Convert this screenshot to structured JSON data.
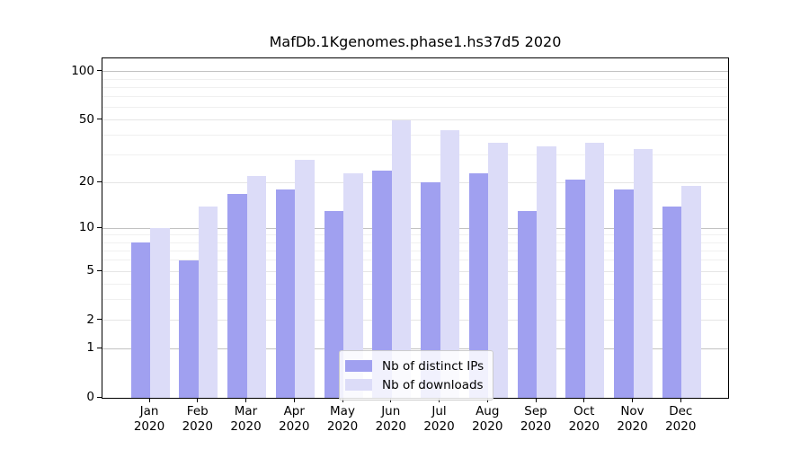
{
  "chart_data": {
    "type": "bar",
    "title": "MafDb.1Kgenomes.phase1.hs37d5 2020",
    "year": "2020",
    "categories": [
      "Jan",
      "Feb",
      "Mar",
      "Apr",
      "May",
      "Jun",
      "Jul",
      "Aug",
      "Sep",
      "Oct",
      "Nov",
      "Dec"
    ],
    "series": [
      {
        "name": "Nb of distinct IPs",
        "color": "#a0a0f0",
        "values": [
          8,
          6,
          17,
          18,
          13,
          24,
          20,
          23,
          13,
          21,
          18,
          14
        ]
      },
      {
        "name": "Nb of downloads",
        "color": "#dcdcf8",
        "values": [
          10,
          14,
          22,
          28,
          23,
          50,
          43,
          36,
          34,
          36,
          33,
          19
        ]
      }
    ],
    "xlabel": "",
    "ylabel": "",
    "yscale": "log1p",
    "yticks": [
      0,
      1,
      2,
      5,
      10,
      20,
      50,
      100
    ],
    "minor_yticks": [
      3,
      4,
      6,
      7,
      8,
      9,
      30,
      40,
      60,
      70,
      80,
      90
    ],
    "ylim": [
      0,
      121
    ],
    "grid": true,
    "legend_position": "lower center"
  },
  "colors": {
    "decade_gridline": "#c2c2c2",
    "labeled_gridline": "#e5e5e5",
    "minor_gridline": "#f0f0f0",
    "axis": "#000000",
    "background": "#ffffff"
  }
}
